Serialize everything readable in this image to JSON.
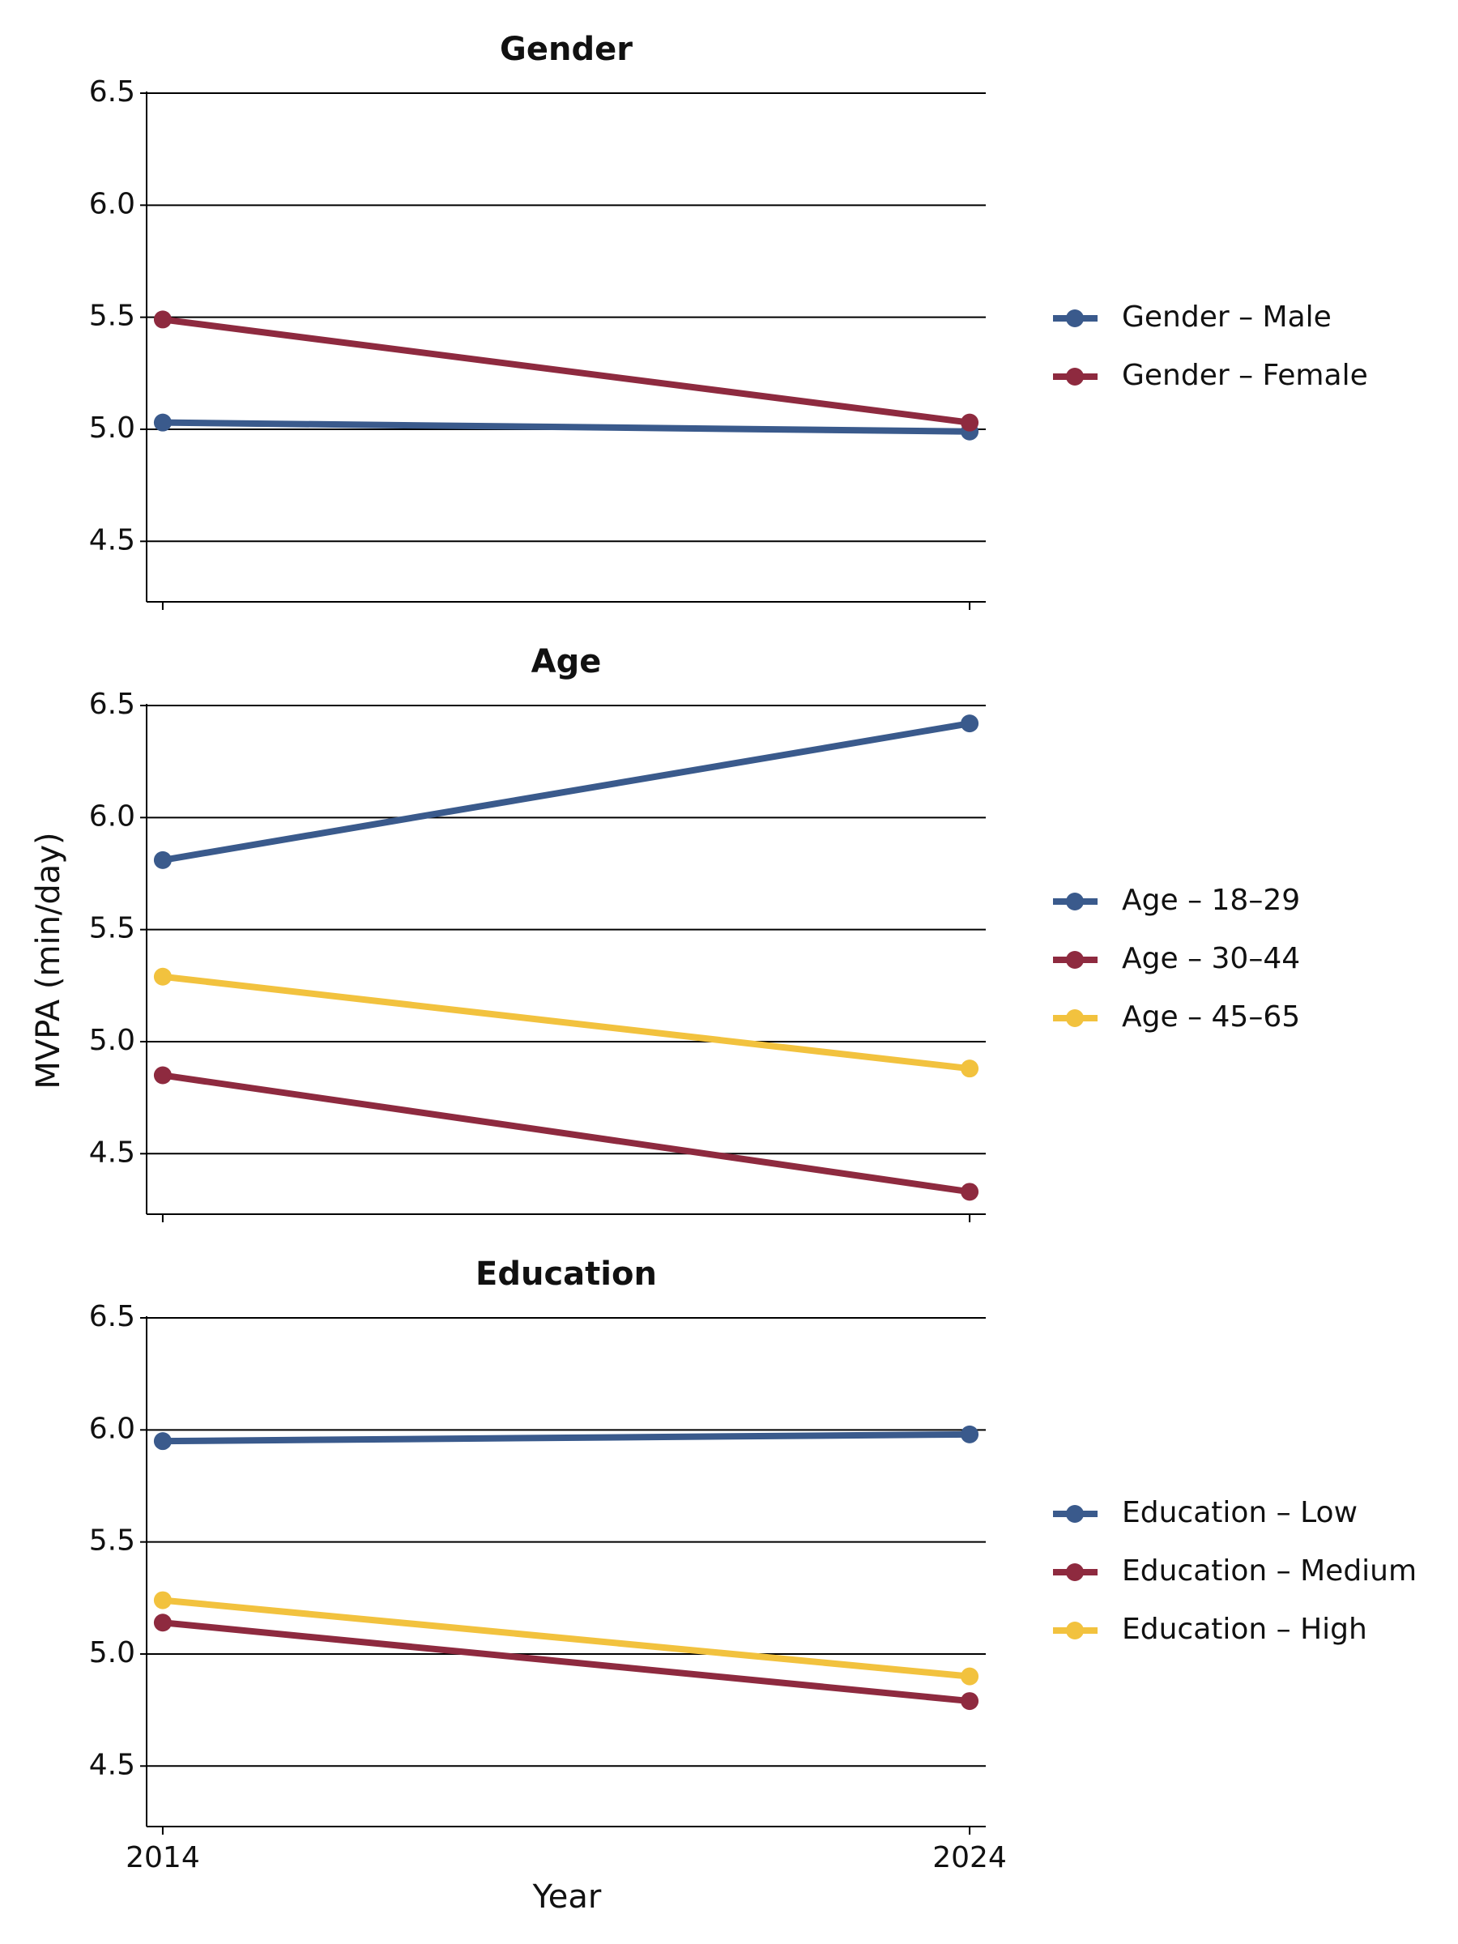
{
  "y_label": "MVPA (min/day)",
  "x_label": "Year",
  "chart_data": [
    {
      "type": "line",
      "title": "Gender",
      "x": [
        2014,
        2024
      ],
      "xlim": [
        2013.8,
        2024.2
      ],
      "xticks": [
        2014,
        2024
      ],
      "ylim": [
        4.23,
        6.5
      ],
      "yticks": [
        {
          "value": 6.5,
          "label": "6.5"
        },
        {
          "value": 6.0,
          "label": "6.0"
        },
        {
          "value": 5.5,
          "label": "5.5"
        },
        {
          "value": 5.0,
          "label": "5.0"
        },
        {
          "value": 4.5,
          "label": "4.5"
        }
      ],
      "grid": true,
      "series": [
        {
          "name": "Gender – Male",
          "color": "#3a5a8c",
          "values": [
            5.03,
            4.99
          ]
        },
        {
          "name": "Gender – Female",
          "color": "#8e2a3f",
          "values": [
            5.49,
            5.03
          ]
        }
      ]
    },
    {
      "type": "line",
      "title": "Age",
      "x": [
        2014,
        2024
      ],
      "xlim": [
        2013.8,
        2024.2
      ],
      "xticks": [
        2014,
        2024
      ],
      "ylim": [
        4.23,
        6.5
      ],
      "yticks": [
        {
          "value": 6.5,
          "label": "6.5"
        },
        {
          "value": 6.0,
          "label": "6.0"
        },
        {
          "value": 5.5,
          "label": "5.5"
        },
        {
          "value": 5.0,
          "label": "5.0"
        },
        {
          "value": 4.5,
          "label": "4.5"
        }
      ],
      "grid": true,
      "series": [
        {
          "name": "Age – 18–29",
          "color": "#3a5a8c",
          "values": [
            5.81,
            6.42
          ]
        },
        {
          "name": "Age – 30–44",
          "color": "#8e2a3f",
          "values": [
            4.85,
            4.33
          ]
        },
        {
          "name": "Age – 45–65",
          "color": "#f2c23e",
          "values": [
            5.29,
            4.88
          ]
        }
      ]
    },
    {
      "type": "line",
      "title": "Education",
      "x": [
        2014,
        2024
      ],
      "xlim": [
        2013.8,
        2024.2
      ],
      "xticks": [
        2014,
        2024
      ],
      "ylim": [
        4.23,
        6.5
      ],
      "yticks": [
        {
          "value": 6.5,
          "label": "6.5"
        },
        {
          "value": 6.0,
          "label": "6.0"
        },
        {
          "value": 5.5,
          "label": "5.5"
        },
        {
          "value": 5.0,
          "label": "5.0"
        },
        {
          "value": 4.5,
          "label": "4.5"
        }
      ],
      "grid": true,
      "series": [
        {
          "name": "Education – Low",
          "color": "#3a5a8c",
          "values": [
            5.95,
            5.98
          ]
        },
        {
          "name": "Education – Medium",
          "color": "#8e2a3f",
          "values": [
            5.14,
            4.79
          ]
        },
        {
          "name": "Education – High",
          "color": "#f2c23e",
          "values": [
            5.24,
            4.9
          ]
        }
      ]
    }
  ]
}
